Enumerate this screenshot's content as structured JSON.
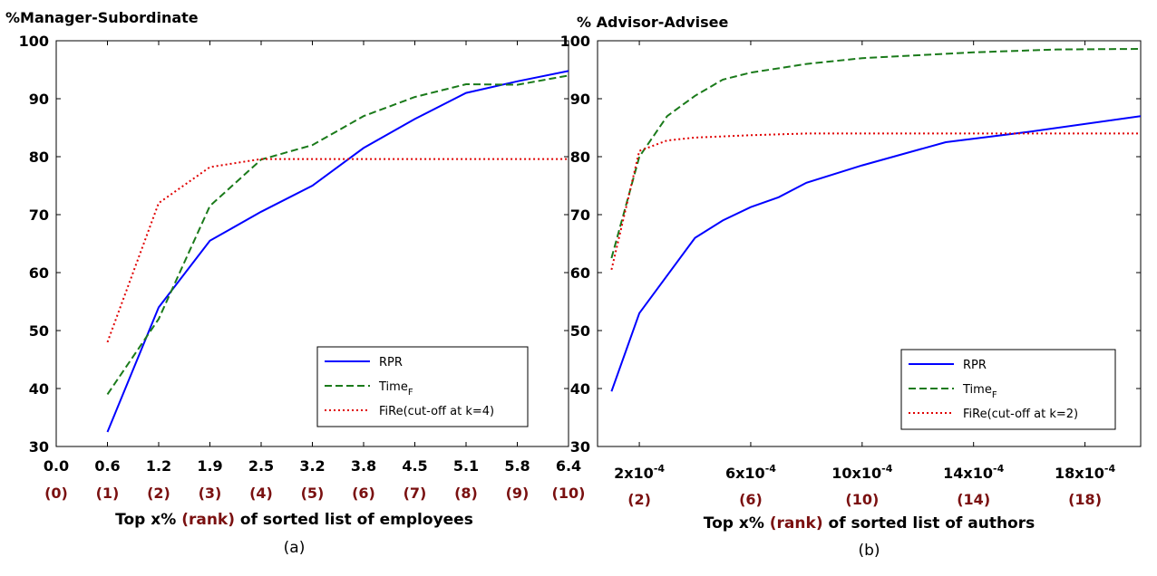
{
  "chart_data": [
    {
      "type": "line",
      "ylabel": "%Manager-Subordinate",
      "xlabel_parts": [
        "Top x% ",
        "(rank)",
        " of sorted list of employees"
      ],
      "caption": "(a)",
      "ylim": [
        30,
        100
      ],
      "yticks": [
        "30",
        "40",
        "50",
        "60",
        "70",
        "80",
        "90",
        "100"
      ],
      "xlim": [
        0,
        10
      ],
      "xticks": [
        {
          "pos": 0,
          "label": "0.0",
          "rank": "(0)"
        },
        {
          "pos": 1,
          "label": "0.6",
          "rank": "(1)"
        },
        {
          "pos": 2,
          "label": "1.2",
          "rank": "(2)"
        },
        {
          "pos": 3,
          "label": "1.9",
          "rank": "(3)"
        },
        {
          "pos": 4,
          "label": "2.5",
          "rank": "(4)"
        },
        {
          "pos": 5,
          "label": "3.2",
          "rank": "(5)"
        },
        {
          "pos": 6,
          "label": "3.8",
          "rank": "(6)"
        },
        {
          "pos": 7,
          "label": "4.5",
          "rank": "(7)"
        },
        {
          "pos": 8,
          "label": "5.1",
          "rank": "(8)"
        },
        {
          "pos": 9,
          "label": "5.8",
          "rank": "(9)"
        },
        {
          "pos": 10,
          "label": "6.4",
          "rank": "(10)"
        }
      ],
      "legend_position": "bottom-right",
      "series": [
        {
          "name": "RPR",
          "color": "#0000ff",
          "style": "solid",
          "x": [
            1,
            2,
            3,
            4,
            5,
            6,
            7,
            8,
            9,
            10
          ],
          "y": [
            32.5,
            54,
            65.5,
            70.5,
            75,
            81.5,
            86.5,
            91,
            93,
            94.8
          ]
        },
        {
          "name": "Time",
          "sub": "F",
          "color": "#1a7a1a",
          "style": "dashed",
          "x": [
            1,
            2,
            3,
            4,
            5,
            6,
            7,
            8,
            9,
            10
          ],
          "y": [
            39,
            52,
            71.5,
            79.5,
            82,
            87,
            90.3,
            92.5,
            92.4,
            94
          ]
        },
        {
          "name": "FiRe(cut-off at k=4)",
          "color": "#e00000",
          "style": "dotted",
          "x": [
            1,
            2,
            3,
            4,
            5,
            6,
            7,
            8,
            9,
            10
          ],
          "y": [
            48,
            72,
            78.2,
            79.6,
            79.6,
            79.6,
            79.6,
            79.6,
            79.6,
            79.6
          ]
        }
      ]
    },
    {
      "type": "line",
      "ylabel": "% Advisor-Advisee",
      "xlabel_parts": [
        "Top x% ",
        "(rank)",
        " of sorted list of authors"
      ],
      "caption": "(b)",
      "ylim": [
        30,
        100
      ],
      "yticks": [
        "30",
        "40",
        "50",
        "60",
        "70",
        "80",
        "90",
        "100"
      ],
      "xlim": [
        5e-07,
        2e-05
      ],
      "xticks": [
        {
          "pos": 2e-06,
          "label": "2x10-4",
          "rank": "(2)"
        },
        {
          "pos": 6e-06,
          "label": "6x10-4",
          "rank": "(6)"
        },
        {
          "pos": 1e-05,
          "label": "10x10-4",
          "rank": "(10)"
        },
        {
          "pos": 1.4e-05,
          "label": "14x10-4",
          "rank": "(14)"
        },
        {
          "pos": 1.8e-05,
          "label": "18x10-4",
          "rank": "(18)"
        }
      ],
      "legend_position": "bottom-right",
      "series": [
        {
          "name": "RPR",
          "color": "#0000ff",
          "style": "solid",
          "x": [
            1e-06,
            2e-06,
            4e-06,
            5e-06,
            6e-06,
            7e-06,
            8e-06,
            1e-05,
            1.3e-05,
            1.6e-05,
            2e-05
          ],
          "y": [
            39.5,
            53,
            66,
            69,
            71.3,
            73,
            75.5,
            78.5,
            82.5,
            84.3,
            87
          ]
        },
        {
          "name": "Time",
          "sub": "F",
          "color": "#1a7a1a",
          "style": "dashed",
          "x": [
            1e-06,
            2e-06,
            3e-06,
            4e-06,
            5e-06,
            6e-06,
            8e-06,
            1e-05,
            1.4e-05,
            1.7e-05,
            2e-05
          ],
          "y": [
            62.5,
            80,
            87,
            90.5,
            93.3,
            94.5,
            96,
            97,
            98,
            98.5,
            98.6
          ]
        },
        {
          "name": "FiRe(cut-off at k=2)",
          "color": "#e00000",
          "style": "dotted",
          "x": [
            1e-06,
            2e-06,
            3e-06,
            4e-06,
            6e-06,
            8e-06,
            2e-05
          ],
          "y": [
            60.5,
            81,
            82.8,
            83.3,
            83.7,
            84,
            84
          ]
        }
      ]
    }
  ]
}
